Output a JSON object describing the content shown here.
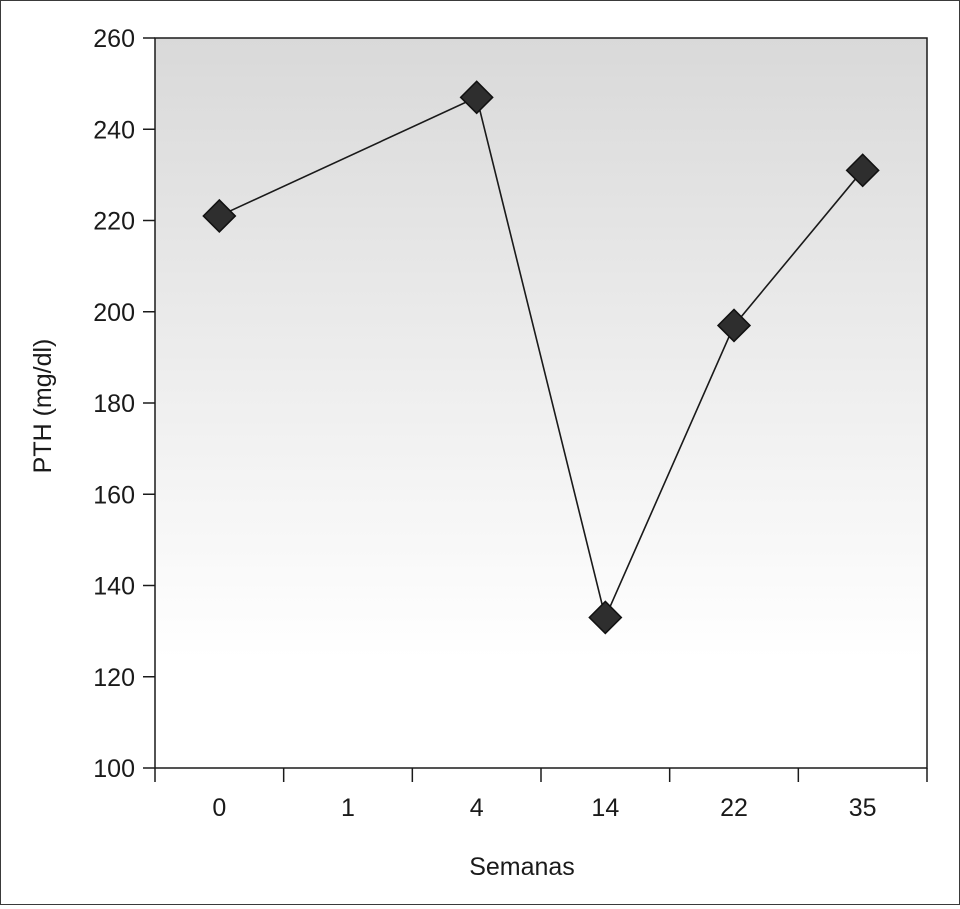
{
  "chart_data": {
    "type": "line",
    "title": "",
    "xlabel": "Semanas",
    "ylabel": "PTH (mg/dl)",
    "categories": [
      "0",
      "1",
      "4",
      "14",
      "22",
      "35"
    ],
    "ylim": [
      100,
      260
    ],
    "yticks": [
      100,
      120,
      140,
      160,
      180,
      200,
      220,
      240,
      260
    ],
    "series": [
      {
        "points": [
          {
            "x": "0",
            "y": 221
          },
          {
            "x": "4",
            "y": 247
          },
          {
            "x": "14",
            "y": 133
          },
          {
            "x": "22",
            "y": 197
          },
          {
            "x": "35",
            "y": 231
          }
        ]
      }
    ],
    "marker": "diamond",
    "line_color": "#1a1a1a",
    "marker_color": "#2e2e2e",
    "background": "gradient-gray-to-white",
    "grid": false,
    "legend": "none"
  }
}
